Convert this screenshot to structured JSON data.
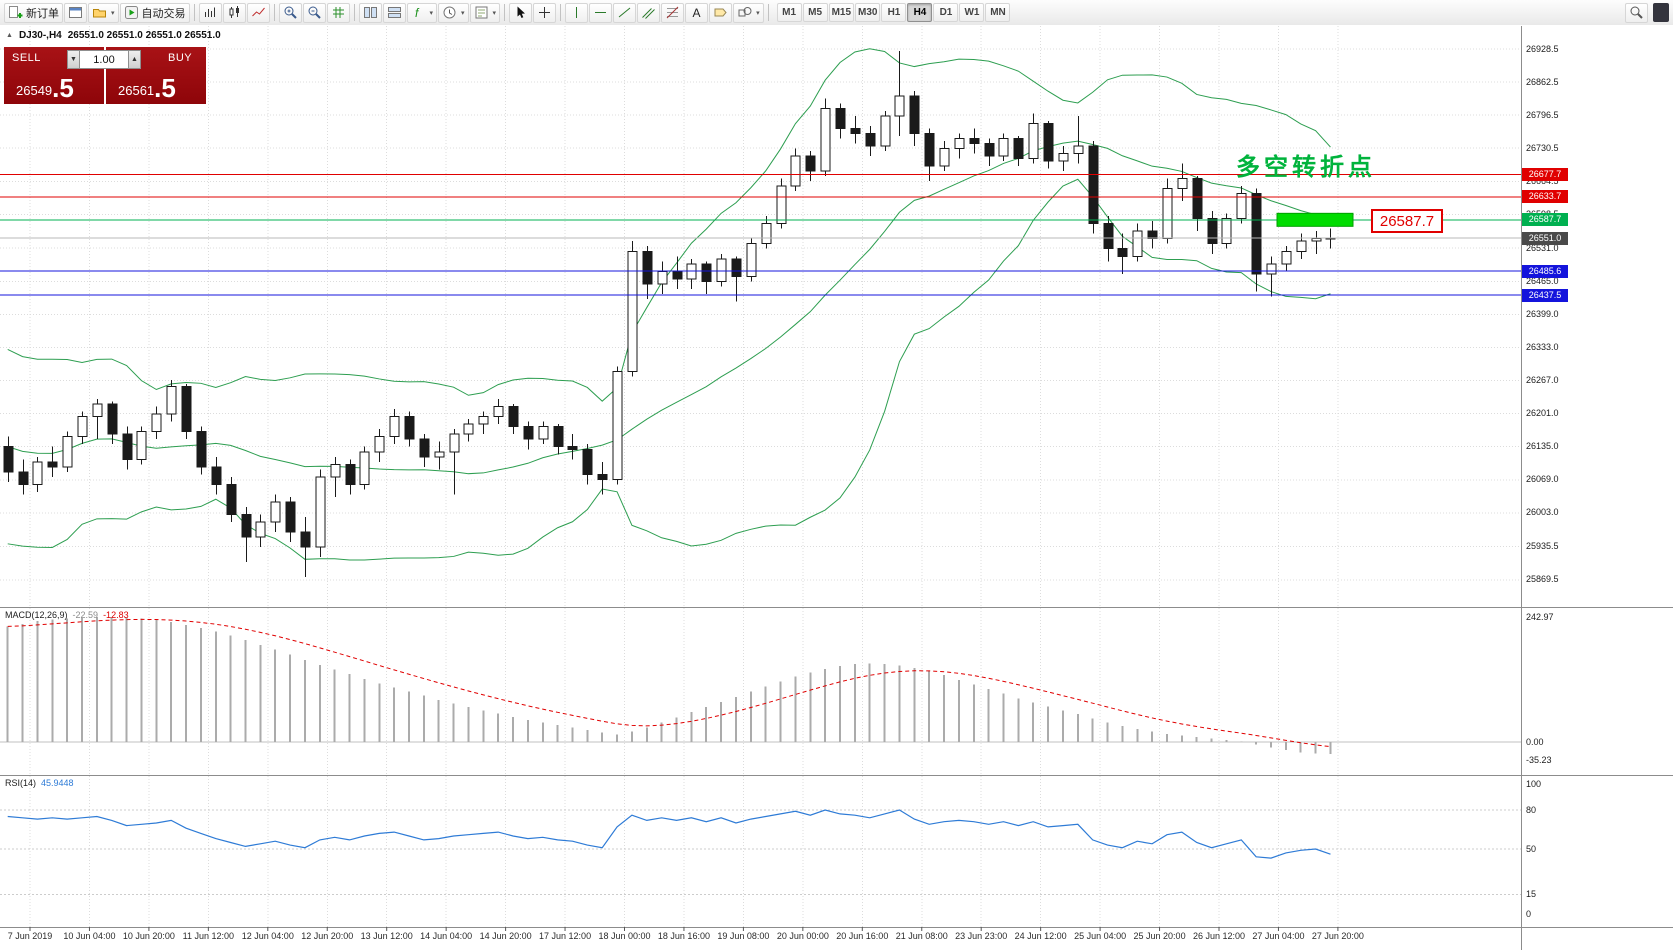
{
  "toolbar": {
    "new_order_label": "新订单",
    "auto_trading_label": "自动交易",
    "timeframes": [
      "M1",
      "M5",
      "M15",
      "M30",
      "H1",
      "H4",
      "D1",
      "W1",
      "MN"
    ],
    "active_timeframe": "H4"
  },
  "chart_header": {
    "symbol": "DJ30-,H4",
    "ohlc": "26551.0 26551.0 26551.0 26551.0"
  },
  "one_click": {
    "sell_label": "SELL",
    "buy_label": "BUY",
    "volume": "1.00",
    "sell_price_main": "26549",
    "sell_price_big": ".5",
    "buy_price_main": "26561",
    "buy_price_big": ".5"
  },
  "annotation": {
    "text": "多空转折点"
  },
  "price_callout": "26587.7",
  "indicators": {
    "macd_name": "MACD(12,26,9)",
    "macd_main": "-22.59",
    "macd_signal": "-12.83",
    "rsi_name": "RSI(14)",
    "rsi_value": "45.9448"
  },
  "chart_data": {
    "type": "candlestick",
    "symbol": "DJ30-",
    "timeframe": "H4",
    "price_axis": [
      26928.5,
      26862.5,
      26796.5,
      26730.5,
      26664.5,
      26598.5,
      26531.0,
      26465.0,
      26399.0,
      26333.0,
      26267.0,
      26201.0,
      26135.0,
      26069.0,
      26003.0,
      25935.5,
      25869.5
    ],
    "levels": [
      {
        "price": 26677.7,
        "label": "26677.7",
        "color": "#e00000",
        "badge": "#e00000"
      },
      {
        "price": 26633.7,
        "label": "26633.7",
        "color": "#e00000",
        "badge": "#e00000"
      },
      {
        "price": 26587.7,
        "label": "26587.7",
        "color": "#00b050",
        "badge": "#00b050"
      },
      {
        "price": 26551.0,
        "label": "26551.0",
        "color": "#b8b8b8",
        "badge": "#4a4a4a"
      },
      {
        "price": 26485.6,
        "label": "26485.6",
        "color": "#1414dc",
        "badge": "#1414dc"
      },
      {
        "price": 26437.5,
        "label": "26437.5",
        "color": "#1414dc",
        "badge": "#1414dc"
      }
    ],
    "highlight": {
      "price": 26587.7
    },
    "bollinger": {
      "period": 20,
      "deviation": 2
    },
    "warmup_closes": [
      26300,
      26250,
      26180,
      26100,
      26000,
      25950,
      26050,
      26150,
      26250,
      26320,
      26280,
      26200,
      26120,
      26060,
      26000,
      26080,
      26160,
      26220,
      26150,
      26100
    ],
    "candles": [
      [
        26135,
        26155,
        26065,
        26085
      ],
      [
        26085,
        26110,
        26040,
        26060
      ],
      [
        26060,
        26115,
        26045,
        26105
      ],
      [
        26105,
        26135,
        26075,
        26095
      ],
      [
        26095,
        26165,
        26085,
        26155
      ],
      [
        26155,
        26205,
        26140,
        26195
      ],
      [
        26195,
        26230,
        26150,
        26220
      ],
      [
        26220,
        26225,
        26140,
        26160
      ],
      [
        26160,
        26175,
        26090,
        26110
      ],
      [
        26110,
        26175,
        26100,
        26165
      ],
      [
        26165,
        26215,
        26150,
        26200
      ],
      [
        26200,
        26268,
        26185,
        26255
      ],
      [
        26255,
        26260,
        26150,
        26165
      ],
      [
        26165,
        26175,
        26080,
        26095
      ],
      [
        26095,
        26115,
        26040,
        26060
      ],
      [
        26060,
        26075,
        25985,
        26000
      ],
      [
        26000,
        26015,
        25905,
        25955
      ],
      [
        25955,
        26000,
        25935,
        25985
      ],
      [
        25985,
        26040,
        25965,
        26025
      ],
      [
        26025,
        26035,
        25945,
        25965
      ],
      [
        25965,
        25995,
        25875,
        25935
      ],
      [
        25935,
        26090,
        25915,
        26075
      ],
      [
        26075,
        26115,
        26035,
        26100
      ],
      [
        26100,
        26110,
        26040,
        26060
      ],
      [
        26060,
        26135,
        26050,
        26125
      ],
      [
        26125,
        26170,
        26105,
        26155
      ],
      [
        26155,
        26210,
        26140,
        26195
      ],
      [
        26195,
        26205,
        26135,
        26150
      ],
      [
        26150,
        26160,
        26095,
        26115
      ],
      [
        26115,
        26145,
        26090,
        26125
      ],
      [
        26125,
        26170,
        26040,
        26160
      ],
      [
        26160,
        26190,
        26145,
        26180
      ],
      [
        26180,
        26205,
        26160,
        26195
      ],
      [
        26195,
        26230,
        26180,
        26215
      ],
      [
        26215,
        26220,
        26160,
        26175
      ],
      [
        26175,
        26185,
        26130,
        26150
      ],
      [
        26150,
        26185,
        26140,
        26175
      ],
      [
        26175,
        26180,
        26120,
        26135
      ],
      [
        26135,
        26160,
        26110,
        26130
      ],
      [
        26130,
        26140,
        26060,
        26080
      ],
      [
        26080,
        26105,
        26040,
        26070
      ],
      [
        26070,
        26295,
        26060,
        26285
      ],
      [
        26285,
        26545,
        26275,
        26525
      ],
      [
        26525,
        26535,
        26430,
        26460
      ],
      [
        26460,
        26505,
        26440,
        26485
      ],
      [
        26485,
        26515,
        26450,
        26470
      ],
      [
        26470,
        26510,
        26450,
        26500
      ],
      [
        26500,
        26505,
        26440,
        26465
      ],
      [
        26465,
        26520,
        26455,
        26510
      ],
      [
        26510,
        26515,
        26425,
        26475
      ],
      [
        26475,
        26550,
        26465,
        26540
      ],
      [
        26540,
        26595,
        26530,
        26580
      ],
      [
        26580,
        26670,
        26570,
        26655
      ],
      [
        26655,
        26730,
        26645,
        26715
      ],
      [
        26715,
        26725,
        26665,
        26685
      ],
      [
        26685,
        26830,
        26675,
        26810
      ],
      [
        26810,
        26820,
        26750,
        26770
      ],
      [
        26770,
        26795,
        26740,
        26760
      ],
      [
        26760,
        26775,
        26715,
        26735
      ],
      [
        26735,
        26805,
        26725,
        26795
      ],
      [
        26795,
        26925,
        26755,
        26835
      ],
      [
        26835,
        26845,
        26735,
        26760
      ],
      [
        26760,
        26770,
        26665,
        26695
      ],
      [
        26695,
        26745,
        26685,
        26730
      ],
      [
        26730,
        26760,
        26710,
        26750
      ],
      [
        26750,
        26770,
        26720,
        26740
      ],
      [
        26740,
        26750,
        26695,
        26715
      ],
      [
        26715,
        26760,
        26705,
        26750
      ],
      [
        26750,
        26755,
        26695,
        26710
      ],
      [
        26710,
        26800,
        26700,
        26780
      ],
      [
        26780,
        26785,
        26690,
        26705
      ],
      [
        26705,
        26735,
        26685,
        26720
      ],
      [
        26720,
        26795,
        26700,
        26735
      ],
      [
        26735,
        26745,
        26560,
        26580
      ],
      [
        26580,
        26595,
        26505,
        26530
      ],
      [
        26530,
        26560,
        26480,
        26515
      ],
      [
        26515,
        26580,
        26505,
        26565
      ],
      [
        26565,
        26585,
        26530,
        26550
      ],
      [
        26550,
        26670,
        26540,
        26650
      ],
      [
        26650,
        26700,
        26625,
        26670
      ],
      [
        26670,
        26675,
        26565,
        26590
      ],
      [
        26590,
        26605,
        26520,
        26540
      ],
      [
        26540,
        26600,
        26530,
        26590
      ],
      [
        26590,
        26655,
        26580,
        26640
      ],
      [
        26640,
        26650,
        26445,
        26480
      ],
      [
        26480,
        26515,
        26435,
        26500
      ],
      [
        26500,
        26535,
        26485,
        26525
      ],
      [
        26525,
        26560,
        26510,
        26545
      ],
      [
        26545,
        26565,
        26520,
        26550
      ],
      [
        26550,
        26570,
        26530,
        26551
      ]
    ],
    "macd": {
      "scale": [
        242.97,
        0.0,
        -35.23
      ],
      "last_main": -22.59,
      "last_signal": -12.83,
      "values": [
        225,
        230,
        235,
        238,
        240,
        242,
        243,
        243,
        242,
        240,
        237,
        233,
        228,
        222,
        215,
        207,
        198,
        189,
        180,
        170,
        160,
        150,
        141,
        132,
        123,
        114,
        106,
        98,
        90,
        82,
        75,
        68,
        61,
        55,
        49,
        43,
        38,
        33,
        28,
        23,
        18,
        15,
        20,
        28,
        38,
        48,
        58,
        68,
        78,
        88,
        98,
        108,
        118,
        127,
        135,
        142,
        148,
        152,
        153,
        152,
        149,
        144,
        138,
        130,
        121,
        112,
        103,
        94,
        85,
        77,
        69,
        61,
        54,
        46,
        38,
        31,
        25,
        20,
        16,
        13,
        10,
        7,
        4,
        1,
        -5,
        -11,
        -16,
        -20,
        -22,
        -23
      ]
    },
    "rsi": {
      "scale": [
        100,
        80,
        50,
        15,
        0
      ],
      "last": 45.9448,
      "values": [
        75,
        74,
        73,
        74,
        73,
        74,
        75,
        72,
        68,
        69,
        70,
        72,
        66,
        62,
        58,
        55,
        52,
        54,
        56,
        53,
        51,
        57,
        59,
        57,
        60,
        62,
        63,
        60,
        57,
        58,
        60,
        61,
        62,
        63,
        60,
        58,
        59,
        57,
        56,
        53,
        51,
        67,
        76,
        72,
        74,
        72,
        74,
        71,
        74,
        70,
        73,
        75,
        77,
        79,
        76,
        80,
        77,
        76,
        74,
        77,
        80,
        73,
        69,
        71,
        72,
        71,
        69,
        71,
        68,
        71,
        67,
        68,
        69,
        57,
        53,
        51,
        56,
        54,
        61,
        63,
        55,
        51,
        54,
        57,
        44,
        43,
        47,
        49,
        50,
        46
      ]
    },
    "time_labels": [
      "7 Jun 2019",
      "10 Jun 04:00",
      "10 Jun 20:00",
      "11 Jun 12:00",
      "12 Jun 04:00",
      "12 Jun 20:00",
      "13 Jun 12:00",
      "14 Jun 04:00",
      "14 Jun 20:00",
      "17 Jun 12:00",
      "18 Jun 00:00",
      "18 Jun 16:00",
      "19 Jun 08:00",
      "20 Jun 00:00",
      "20 Jun 16:00",
      "21 Jun 08:00",
      "23 Jun 23:00",
      "24 Jun 12:00",
      "25 Jun 04:00",
      "25 Jun 20:00",
      "26 Jun 12:00",
      "27 Jun 04:00",
      "27 Jun 20:00"
    ]
  }
}
